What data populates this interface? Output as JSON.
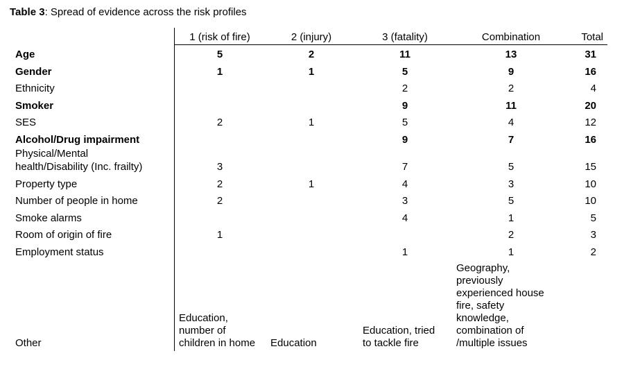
{
  "caption": {
    "label": "Table 3",
    "text": ": Spread of evidence across the risk profiles"
  },
  "headers": [
    "1 (risk of fire)",
    "2 (injury)",
    "3 (fatality)",
    "Combination",
    "Total"
  ],
  "rows": [
    {
      "label": "Age",
      "bold": true,
      "c1": "5",
      "c2": "2",
      "c3": "11",
      "c4": "13",
      "total": "31"
    },
    {
      "label": "Gender",
      "bold": true,
      "c1": "1",
      "c2": "1",
      "c3": "5",
      "c4": "9",
      "total": "16"
    },
    {
      "label": "Ethnicity",
      "bold": false,
      "c1": "",
      "c2": "",
      "c3": "2",
      "c4": "2",
      "total": "4"
    },
    {
      "label": "Smoker",
      "bold": true,
      "c1": "",
      "c2": "",
      "c3": "9",
      "c4": "11",
      "total": "20"
    },
    {
      "label": "SES",
      "bold": false,
      "c1": "2",
      "c2": "1",
      "c3": "5",
      "c4": "4",
      "total": "12"
    },
    {
      "label": "Alcohol/Drug impairment",
      "bold": true,
      "c1": "",
      "c2": "",
      "c3": "9",
      "c4": "7",
      "total": "16"
    },
    {
      "label": "Physical/Mental health/Disability (Inc. frailty)",
      "label_line1": "Physical/Mental",
      "label_line2": "health/Disability (Inc. frailty)",
      "bold": false,
      "c1": "3",
      "c2": "",
      "c3": "7",
      "c4": "5",
      "total": "15"
    },
    {
      "label": "Property type",
      "bold": false,
      "c1": "2",
      "c2": "1",
      "c3": "4",
      "c4": "3",
      "total": "10"
    },
    {
      "label": "Number of people in home",
      "bold": false,
      "c1": "2",
      "c2": "",
      "c3": "3",
      "c4": "5",
      "total": "10"
    },
    {
      "label": "Smoke alarms",
      "bold": false,
      "c1": "",
      "c2": "",
      "c3": "4",
      "c4": "1",
      "total": "5"
    },
    {
      "label": "Room of origin of fire",
      "bold": false,
      "c1": "1",
      "c2": "",
      "c3": "",
      "c4": "2",
      "total": "3"
    },
    {
      "label": "Employment status",
      "bold": false,
      "c1": "",
      "c2": "",
      "c3": "1",
      "c4": "1",
      "total": "2"
    }
  ],
  "other": {
    "label": "Other",
    "c1": [
      "Education,",
      "number of",
      "children in home"
    ],
    "c2": [
      "Education"
    ],
    "c3": [
      "Education, tried",
      "to tackle fire"
    ],
    "c4": [
      "Geography,",
      "previously",
      "experienced house",
      "fire, safety",
      "knowledge,",
      "combination of",
      "/multiple issues"
    ]
  }
}
